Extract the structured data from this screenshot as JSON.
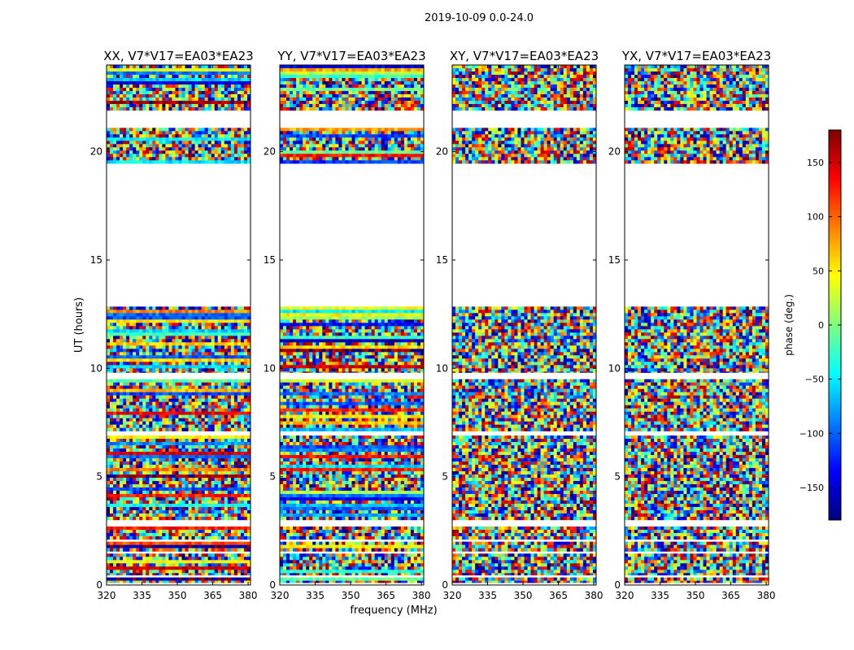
{
  "figure": {
    "suptitle": "2019-10-09 0.0-24.0"
  },
  "chart_data": {
    "type": "heatmap",
    "xlabel": "frequency (MHz)",
    "ylabel": "UT (hours)",
    "xlim": [
      320,
      381
    ],
    "ylim": [
      0,
      24
    ],
    "xticks": [
      320,
      335,
      350,
      365,
      380
    ],
    "yticks": [
      0,
      5,
      10,
      15,
      20
    ],
    "colorbar": {
      "label": "phase (deg.)",
      "range": [
        -180,
        180
      ],
      "ticks": [
        -150,
        -100,
        -50,
        0,
        50,
        100,
        150
      ],
      "tick_labels": [
        "−150",
        "−100",
        "−50",
        "0",
        "50",
        "100",
        "150"
      ],
      "colors": [
        "#00007f",
        "#0000ff",
        "#007fff",
        "#00ffff",
        "#7fff7f",
        "#ffff00",
        "#ff7f00",
        "#ff0000",
        "#7f0000"
      ]
    },
    "data_blocks_ut": [
      [
        0.1,
        0.35
      ],
      [
        0.45,
        1.45
      ],
      [
        1.55,
        2.0
      ],
      [
        2.1,
        2.7
      ],
      [
        3.0,
        6.9
      ],
      [
        7.1,
        9.5
      ],
      [
        9.8,
        12.85
      ],
      [
        19.45,
        21.1
      ],
      [
        21.9,
        24.0
      ]
    ],
    "panels": [
      {
        "title": "XX, V7*V17=EA03*EA23",
        "pol": "XX"
      },
      {
        "title": "YY, V7*V17=EA03*EA23",
        "pol": "YY"
      },
      {
        "title": "XY, V7*V17=EA03*EA23",
        "pol": "XY"
      },
      {
        "title": "YX, V7*V17=EA03*EA23",
        "pol": "YX"
      }
    ]
  }
}
